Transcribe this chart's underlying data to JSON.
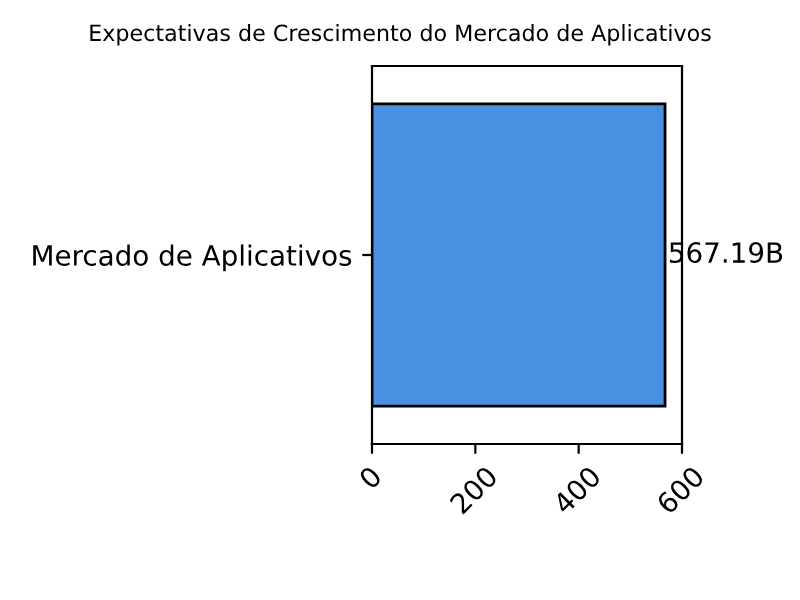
{
  "chart_data": {
    "type": "bar",
    "orientation": "horizontal",
    "title": "Expectativas de Crescimento do Mercado de Aplicativos",
    "categories": [
      "Mercado de Aplicativos"
    ],
    "values": [
      567.19
    ],
    "color": "#4a90e2",
    "value_labels": [
      "567.19B"
    ],
    "xlim": [
      0,
      600
    ],
    "xticks": [
      0,
      200,
      400,
      600
    ],
    "grid": false,
    "legend": false
  }
}
